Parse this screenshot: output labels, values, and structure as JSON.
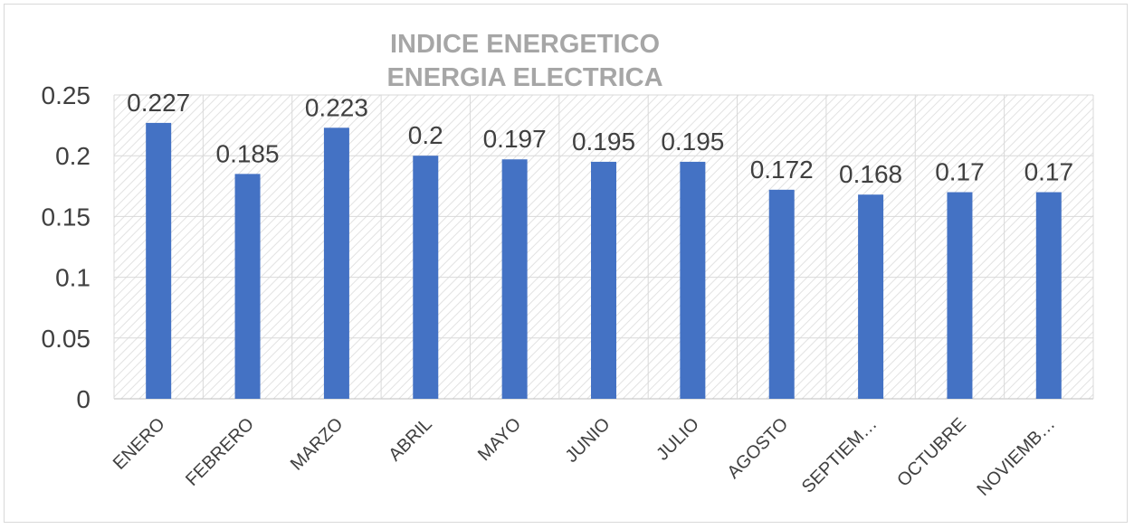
{
  "chart_data": {
    "type": "bar",
    "title": [
      "INDICE ENERGETICO",
      "ENERGIA ELECTRICA"
    ],
    "categories": [
      "ENERO",
      "FEBRERO",
      "MARZO",
      "ABRIL",
      "MAYO",
      "JUNIO",
      "JULIO",
      "AGOSTO",
      "SEPTIEM…",
      "OCTUBRE",
      "NOVIEMB…"
    ],
    "values": [
      0.227,
      0.185,
      0.223,
      0.2,
      0.197,
      0.195,
      0.195,
      0.172,
      0.168,
      0.17,
      0.17
    ],
    "value_labels": [
      "0.227",
      "0.185",
      "0.223",
      "0.2",
      "0.197",
      "0.195",
      "0.195",
      "0.172",
      "0.168",
      "0.17",
      "0.17"
    ],
    "yticks": [
      0,
      0.05,
      0.1,
      0.15,
      0.2,
      0.25
    ],
    "ytick_labels": [
      "0",
      "0.05",
      "0.1",
      "0.15",
      "0.2",
      "0.25"
    ],
    "ylim": [
      0,
      0.25
    ],
    "xlabel": "",
    "ylabel": "",
    "grid": true,
    "legend": "none",
    "colors": {
      "bar": "#4472c4",
      "title": "#a6a6a6",
      "text": "#404040",
      "grid": "#d9d9d9",
      "hatch": "#e6e6e6"
    }
  }
}
